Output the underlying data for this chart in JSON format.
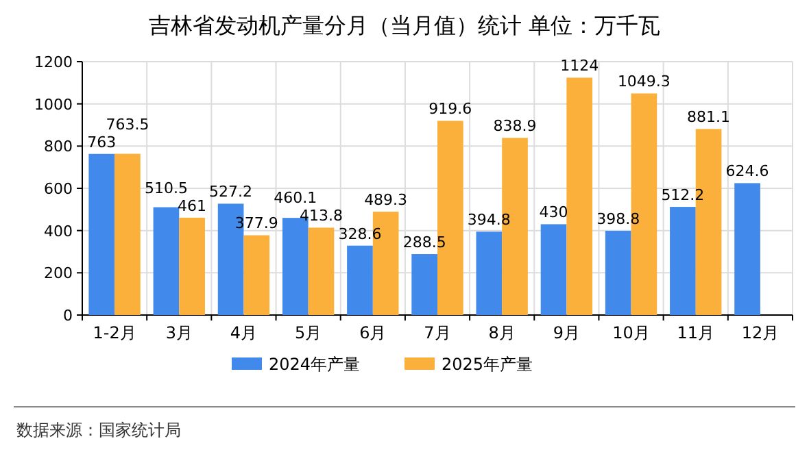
{
  "chart_data": {
    "type": "bar",
    "title": "吉林省发动机产量分月（当月值）统计 单位：万千瓦",
    "categories": [
      "1-2月",
      "3月",
      "4月",
      "5月",
      "6月",
      "7月",
      "8月",
      "9月",
      "10月",
      "11月",
      "12月"
    ],
    "series": [
      {
        "name": "2024年产量",
        "color": "#4189eb",
        "values": [
          763,
          510.5,
          527.2,
          460.1,
          328.6,
          288.5,
          394.8,
          430,
          398.8,
          512.2,
          624.6
        ]
      },
      {
        "name": "2025年产量",
        "color": "#fbb03b",
        "values": [
          763.5,
          461,
          377.9,
          413.8,
          489.3,
          919.6,
          838.9,
          1124,
          1049.3,
          881.1,
          null
        ]
      }
    ],
    "ylim": [
      0,
      1200
    ],
    "yticks": [
      0,
      200,
      400,
      600,
      800,
      1000,
      1200
    ],
    "grid": true,
    "legend": "bottom",
    "data_labels": true,
    "annotations": [
      "数据来源：国家统计局"
    ]
  }
}
